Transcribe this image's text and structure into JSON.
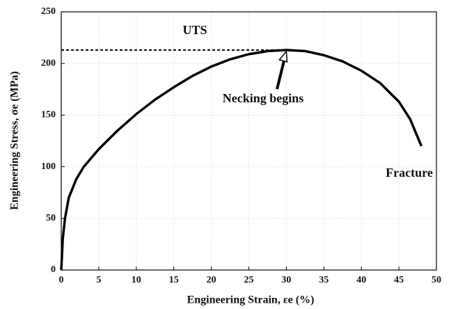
{
  "chart_data": {
    "type": "line",
    "xlabel": "Engineering Strain,  εe (%)",
    "ylabel": "Engineering Stress,  σe  (MPa)",
    "annotations": [
      "UTS",
      "Necking begins",
      "Fracture"
    ],
    "x": [
      0,
      0.2,
      0.5,
      1,
      2,
      3,
      5,
      7.5,
      10,
      12.5,
      15,
      17.5,
      20,
      22.5,
      25,
      27.5,
      30,
      32.5,
      35,
      37.5,
      40,
      42.5,
      45,
      46.5,
      48
    ],
    "values": [
      0,
      30,
      50,
      70,
      88,
      100,
      117,
      135,
      151,
      165,
      177,
      188,
      197,
      204,
      209,
      212,
      213,
      212,
      208,
      202,
      193,
      181,
      163,
      146,
      120
    ],
    "color": "#000000",
    "xlim": [
      0,
      50
    ],
    "xticks": [
      0,
      5,
      10,
      15,
      20,
      25,
      30,
      35,
      40,
      45,
      50
    ],
    "ylim": [
      0,
      250
    ],
    "yticks": [
      0,
      50,
      100,
      150,
      200,
      250
    ],
    "grid": true
  }
}
